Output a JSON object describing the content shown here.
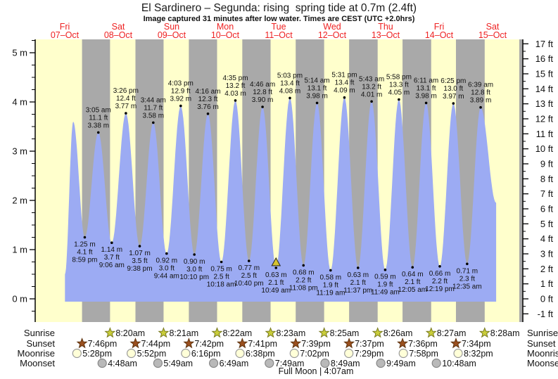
{
  "title": "El Sardinero – Segunda: rising  spring tide at 0.7m (2.4ft)",
  "subtitle": "Image captured 31 minutes after low water. Times are CEST (UTC +2.0hrs)",
  "days": [
    {
      "name": "Fri",
      "date": "07–Oct"
    },
    {
      "name": "Sat",
      "date": "08–Oct"
    },
    {
      "name": "Sun",
      "date": "09–Oct"
    },
    {
      "name": "Mon",
      "date": "10–Oct"
    },
    {
      "name": "Tue",
      "date": "11–Oct"
    },
    {
      "name": "Wed",
      "date": "12–Oct"
    },
    {
      "name": "Thu",
      "date": "13–Oct"
    },
    {
      "name": "Fri",
      "date": "14–Oct"
    },
    {
      "name": "Sat",
      "date": "15–Oct"
    }
  ],
  "chart_data": {
    "type": "area",
    "title": "Tide height curve over 9 days",
    "y_axis_left": {
      "unit": "m",
      "min": 0,
      "max": 5,
      "major_step": 1,
      "minor_step": 0.25
    },
    "y_axis_right": {
      "unit": "ft",
      "min": -1,
      "max": 17,
      "major_step": 1,
      "minor_step": 0.5
    },
    "high_tides": [
      {
        "day": 1,
        "time": "3:05 am",
        "height_ft": 11.1,
        "height_m": 3.38
      },
      {
        "day": 1,
        "time": "3:26 pm",
        "height_ft": 12.4,
        "height_m": 3.77
      },
      {
        "day": 2,
        "time": "3:44 am",
        "height_ft": 11.7,
        "height_m": 3.58
      },
      {
        "day": 2,
        "time": "4:03 pm",
        "height_ft": 12.9,
        "height_m": 3.92
      },
      {
        "day": 3,
        "time": "4:16 am",
        "height_ft": 12.3,
        "height_m": 3.76
      },
      {
        "day": 3,
        "time": "4:35 pm",
        "height_ft": 13.2,
        "height_m": 4.03
      },
      {
        "day": 4,
        "time": "4:46 am",
        "height_ft": 12.8,
        "height_m": 3.9
      },
      {
        "day": 4,
        "time": "5:03 pm",
        "height_ft": 13.4,
        "height_m": 4.08
      },
      {
        "day": 5,
        "time": "5:14 am",
        "height_ft": 13.1,
        "height_m": 3.98
      },
      {
        "day": 5,
        "time": "5:31 pm",
        "height_ft": 13.4,
        "height_m": 4.09
      },
      {
        "day": 6,
        "time": "5:43 am",
        "height_ft": 13.2,
        "height_m": 4.01
      },
      {
        "day": 6,
        "time": "5:58 pm",
        "height_ft": 13.3,
        "height_m": 4.05
      },
      {
        "day": 7,
        "time": "6:11 am",
        "height_ft": 13.1,
        "height_m": 3.98
      },
      {
        "day": 7,
        "time": "6:25 pm",
        "height_ft": 13.0,
        "height_m": 3.97
      },
      {
        "day": 8,
        "time": "6:39 am",
        "height_ft": 12.8,
        "height_m": 3.89
      }
    ],
    "low_tides": [
      {
        "day": 0,
        "time": "8:59 pm",
        "height_m": 1.25,
        "height_ft": 4.1
      },
      {
        "day": 1,
        "time": "9:06 am",
        "height_m": 1.14,
        "height_ft": 3.7
      },
      {
        "day": 1,
        "time": "9:38 pm",
        "height_m": 1.07,
        "height_ft": 3.5
      },
      {
        "day": 2,
        "time": "9:44 am",
        "height_m": 0.92,
        "height_ft": 3.0
      },
      {
        "day": 2,
        "time": "10:10 pm",
        "height_m": 0.9,
        "height_ft": 3.0
      },
      {
        "day": 3,
        "time": "10:18 am",
        "height_m": 0.75,
        "height_ft": 2.5
      },
      {
        "day": 3,
        "time": "10:40 pm",
        "height_m": 0.77,
        "height_ft": 2.5
      },
      {
        "day": 4,
        "time": "10:49 am",
        "height_m": 0.63,
        "height_ft": 2.1,
        "current": true
      },
      {
        "day": 4,
        "time": "11:08 pm",
        "height_m": 0.68,
        "height_ft": 2.2
      },
      {
        "day": 5,
        "time": "11:19 am",
        "height_m": 0.58,
        "height_ft": 1.9
      },
      {
        "day": 5,
        "time": "11:37 pm",
        "height_m": 0.63,
        "height_ft": 2.1
      },
      {
        "day": 6,
        "time": "11:49 am",
        "height_m": 0.59,
        "height_ft": 1.9
      },
      {
        "day": 7,
        "time": "12:05 am",
        "height_m": 0.64,
        "height_ft": 2.1
      },
      {
        "day": 7,
        "time": "12:19 pm",
        "height_m": 0.66,
        "height_ft": 2.2
      },
      {
        "day": 8,
        "time": "12:35 am",
        "height_m": 0.71,
        "height_ft": 2.3
      }
    ],
    "unlabeled_first_high": {
      "day": 0,
      "time_decimal_h": 15.8,
      "height_m": 3.6
    },
    "curve_start": {
      "day": 0,
      "time_decimal_h": 12.1,
      "height_m": 0.5
    },
    "curve_end": {
      "day": 8,
      "time_decimal_h": 13.6,
      "height_m": 1.95
    }
  },
  "astro": {
    "rows": [
      {
        "name": "sunrise",
        "label": "Sunrise",
        "icon": "sunrise-star",
        "events": [
          {
            "day": 1,
            "time": "8:20am"
          },
          {
            "day": 2,
            "time": "8:21am"
          },
          {
            "day": 3,
            "time": "8:22am"
          },
          {
            "day": 4,
            "time": "8:23am"
          },
          {
            "day": 5,
            "time": "8:25am"
          },
          {
            "day": 6,
            "time": "8:26am"
          },
          {
            "day": 7,
            "time": "8:27am"
          },
          {
            "day": 8,
            "time": "8:28am"
          }
        ]
      },
      {
        "name": "sunset",
        "label": "Sunset",
        "icon": "sunset-star",
        "events": [
          {
            "day": 0,
            "time": "7:46pm"
          },
          {
            "day": 1,
            "time": "7:44pm"
          },
          {
            "day": 2,
            "time": "7:42pm"
          },
          {
            "day": 3,
            "time": "7:41pm"
          },
          {
            "day": 4,
            "time": "7:39pm"
          },
          {
            "day": 5,
            "time": "7:37pm"
          },
          {
            "day": 6,
            "time": "7:36pm"
          },
          {
            "day": 7,
            "time": "7:34pm"
          }
        ]
      },
      {
        "name": "moonrise",
        "label": "Moonrise",
        "icon": "moonrise-circle",
        "events": [
          {
            "day": 0,
            "time": "5:28pm"
          },
          {
            "day": 1,
            "time": "5:52pm"
          },
          {
            "day": 2,
            "time": "6:16pm"
          },
          {
            "day": 3,
            "time": "6:38pm"
          },
          {
            "day": 4,
            "time": "7:02pm"
          },
          {
            "day": 5,
            "time": "7:29pm"
          },
          {
            "day": 6,
            "time": "7:58pm"
          },
          {
            "day": 7,
            "time": "8:32pm"
          }
        ]
      },
      {
        "name": "moonset",
        "label": "Moonset",
        "icon": "moonset-circle",
        "events": [
          {
            "day": 1,
            "time": "4:48am"
          },
          {
            "day": 2,
            "time": "5:49am"
          },
          {
            "day": 3,
            "time": "6:49am"
          },
          {
            "day": 4,
            "time": "7:49am"
          },
          {
            "day": 5,
            "time": "8:49am"
          },
          {
            "day": 6,
            "time": "9:49am"
          },
          {
            "day": 7,
            "time": "10:48am"
          }
        ]
      }
    ],
    "footnote": "Full Moon | 4:07am"
  },
  "colors": {
    "day_band": "#ffffcc",
    "night_band": "#a9a9a9",
    "water": "#9cabf3",
    "date_red": "#ee2222",
    "text": "#111111",
    "sunrise_star": "#c9cd3a",
    "sunrise_star_stroke": "#77791f",
    "sunset_star": "#9a4f1e",
    "sunset_star_stroke": "#5e330f",
    "moonrise_fill": "#ffffd8",
    "moonrise_stroke": "#999999",
    "moonset_fill": "#b9b9b9",
    "moonset_stroke": "#878787",
    "current_marker": "#d6c331"
  }
}
